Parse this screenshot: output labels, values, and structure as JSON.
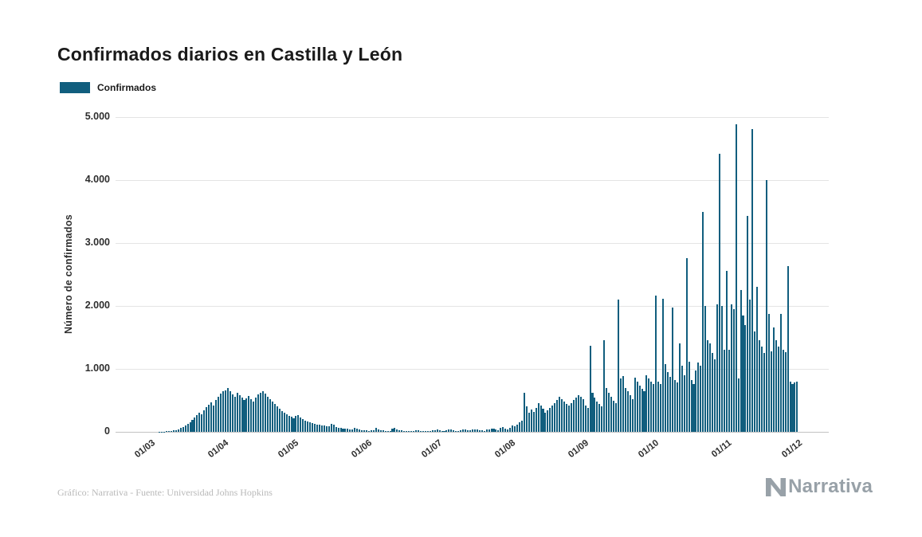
{
  "title": "Confirmados diarios en Castilla y León",
  "legend": {
    "label": "Confirmados",
    "color": "#115e7e"
  },
  "footer": {
    "credit": "Gráfico: Narrativa - Fuente: Universidad Johns Hopkins",
    "logo_text": "Narrativa"
  },
  "chart_data": {
    "type": "bar",
    "title": "Confirmados diarios en Castilla y León",
    "xlabel": "",
    "ylabel": "Número de confirmados",
    "ylim": [
      0,
      5000
    ],
    "grid": "horizontal",
    "legend_position": "top-left",
    "series_name": "Confirmados",
    "bar_color": "#115e7e",
    "y_tick_values": [
      0,
      1000,
      2000,
      3000,
      4000,
      5000
    ],
    "y_tick_labels": [
      "0",
      "1.000",
      "2.000",
      "3.000",
      "4.000",
      "5.000"
    ],
    "x_tick_labels": [
      "01/03",
      "01/04",
      "01/05",
      "01/06",
      "01/07",
      "01/08",
      "01/09",
      "01/10",
      "01/11",
      "01/12"
    ],
    "x_tick_day_index": [
      0,
      31,
      61,
      92,
      122,
      153,
      184,
      214,
      245,
      275
    ],
    "days_total": 275,
    "start_date": "01/03",
    "end_date": "01/12",
    "values": [
      0,
      0,
      0,
      2,
      3,
      5,
      8,
      12,
      16,
      22,
      30,
      42,
      58,
      78,
      98,
      122,
      152,
      190,
      228,
      266,
      305,
      282,
      348,
      392,
      430,
      468,
      420,
      512,
      556,
      602,
      648,
      660,
      700,
      640,
      600,
      560,
      615,
      580,
      545,
      505,
      535,
      565,
      525,
      480,
      545,
      598,
      622,
      648,
      602,
      560,
      518,
      480,
      440,
      400,
      362,
      330,
      300,
      278,
      258,
      238,
      220,
      252,
      272,
      230,
      205,
      182,
      162,
      150,
      140,
      130,
      120,
      112,
      104,
      96,
      90,
      84,
      130,
      118,
      76,
      68,
      62,
      56,
      50,
      46,
      42,
      38,
      62,
      56,
      34,
      30,
      26,
      22,
      18,
      24,
      30,
      62,
      42,
      30,
      22,
      16,
      12,
      14,
      52,
      62,
      40,
      30,
      22,
      16,
      12,
      10,
      14,
      18,
      22,
      26,
      18,
      14,
      10,
      8,
      16,
      22,
      26,
      32,
      22,
      16,
      12,
      26,
      32,
      36,
      22,
      16,
      12,
      30,
      42,
      32,
      26,
      22,
      36,
      42,
      32,
      26,
      22,
      16,
      32,
      42,
      52,
      46,
      36,
      30,
      62,
      72,
      52,
      42,
      62,
      102,
      92,
      112,
      152,
      182,
      622,
      402,
      302,
      352,
      322,
      382,
      452,
      422,
      362,
      302,
      342,
      382,
      422,
      462,
      502,
      562,
      522,
      482,
      442,
      412,
      452,
      502,
      542,
      582,
      562,
      522,
      420,
      380,
      1370,
      620,
      540,
      480,
      440,
      400,
      1450,
      700,
      620,
      560,
      500,
      460,
      2100,
      850,
      880,
      700,
      640,
      580,
      520,
      860,
      800,
      740,
      680,
      640,
      900,
      850,
      800,
      760,
      2160,
      800,
      760,
      2120,
      1070,
      950,
      870,
      1970,
      820,
      780,
      1400,
      1050,
      900,
      2760,
      1120,
      820,
      760,
      980,
      1100,
      1050,
      3500,
      2000,
      1460,
      1400,
      1250,
      1150,
      2030,
      4420,
      2000,
      1300,
      2560,
      1300,
      2030,
      1950,
      4890,
      850,
      2250,
      1850,
      1700,
      3430,
      2100,
      4810,
      1600,
      2300,
      1450,
      1350,
      1250,
      4000,
      1870,
      1280,
      1660,
      1450,
      1350,
      1870,
      1300,
      1260,
      2630,
      800,
      760,
      780,
      800
    ]
  }
}
